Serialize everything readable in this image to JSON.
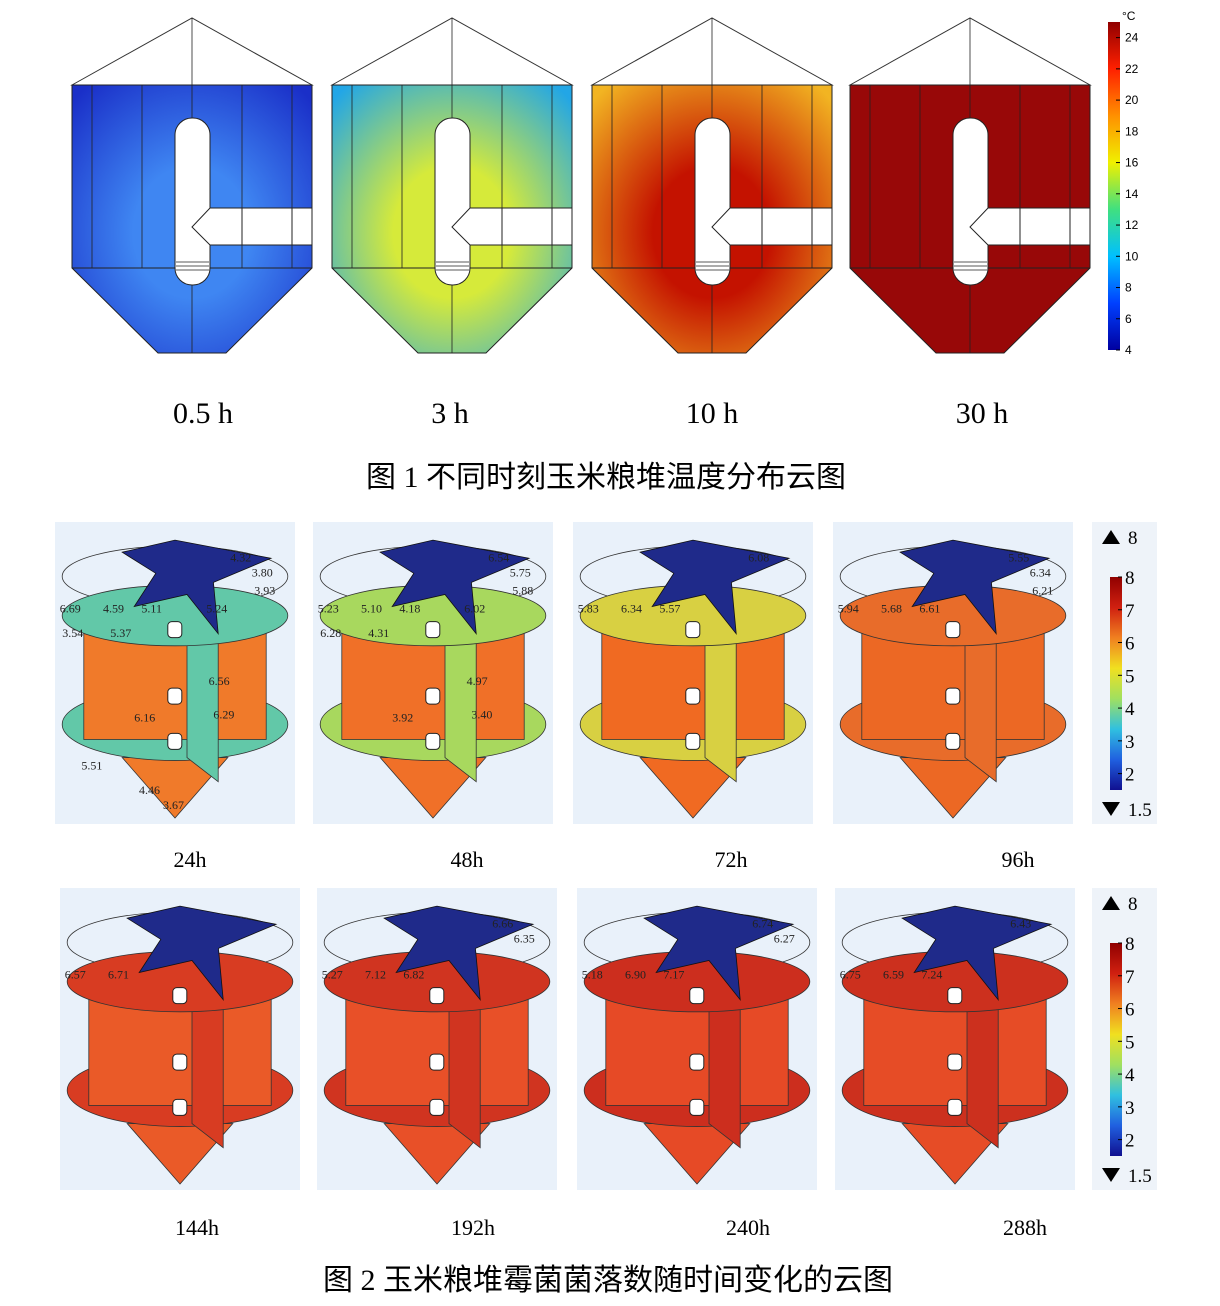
{
  "figure1": {
    "panels": [
      {
        "label": "0.5 h",
        "colors": [
          "#3f86f2",
          "#1a2fc8"
        ]
      },
      {
        "label": "3 h",
        "colors": [
          "#d6ea3a",
          "#22a6e6"
        ]
      },
      {
        "label": "10 h",
        "colors": [
          "#c41200",
          "#f2b422"
        ]
      },
      {
        "label": "30 h",
        "colors": [
          "#980808",
          "#980808"
        ]
      }
    ],
    "colorbar": {
      "unit": "°C",
      "range": [
        4,
        25
      ],
      "ticks": [
        4,
        6,
        8,
        10,
        12,
        14,
        16,
        18,
        20,
        22,
        24
      ]
    },
    "caption": "图 1  不同时刻玉米粮堆温度分布云图"
  },
  "figure2": {
    "rows": [
      {
        "panels": [
          {
            "label": "24h",
            "disk_color": "#62c8a8",
            "body_color": "#f07a2a",
            "contour_labels": [
              "6.69",
              "4.59",
              "5.11",
              "4.32",
              "3.80",
              "3.93",
              "5.24",
              "3.54",
              "5.37",
              "6.56",
              "6.16",
              "6.29",
              "5.51",
              "4.46",
              "3.67"
            ]
          },
          {
            "label": "48h",
            "disk_color": "#a8d85e",
            "body_color": "#f07028",
            "contour_labels": [
              "5.23",
              "5.10",
              "4.18",
              "6.54",
              "5.75",
              "5.88",
              "6.02",
              "6.28",
              "4.31",
              "4.97",
              "3.92",
              "3.40"
            ]
          },
          {
            "label": "72h",
            "disk_color": "#d8d042",
            "body_color": "#f06a22",
            "contour_labels": [
              "5.83",
              "6.34",
              "5.57",
              "6.08"
            ]
          },
          {
            "label": "96h",
            "disk_color": "#e86c2a",
            "body_color": "#ec6824",
            "contour_labels": [
              "5.94",
              "5.68",
              "6.61",
              "5.55",
              "6.34",
              "6.21"
            ]
          }
        ]
      },
      {
        "panels": [
          {
            "label": "144h",
            "disk_color": "#d83c22",
            "body_color": "#ea5a28",
            "contour_labels": [
              "6.57",
              "6.71"
            ]
          },
          {
            "label": "192h",
            "disk_color": "#d03420",
            "body_color": "#e85028",
            "contour_labels": [
              "5.27",
              "7.12",
              "6.82",
              "6.66",
              "6.35"
            ]
          },
          {
            "label": "240h",
            "disk_color": "#cc2e1e",
            "body_color": "#e64a26",
            "contour_labels": [
              "5.18",
              "6.90",
              "7.17",
              "6.74",
              "6.27"
            ]
          },
          {
            "label": "288h",
            "disk_color": "#cc301e",
            "body_color": "#e64c26",
            "contour_labels": [
              "6.75",
              "6.59",
              "7.24",
              "6.43"
            ]
          }
        ]
      }
    ],
    "colorbar": {
      "max": 8,
      "min": 1.5,
      "ticks": [
        2,
        3,
        4,
        5,
        6,
        7,
        8
      ]
    },
    "caption": "图 2  玉米粮堆霉菌菌落数随时间变化的云图"
  }
}
